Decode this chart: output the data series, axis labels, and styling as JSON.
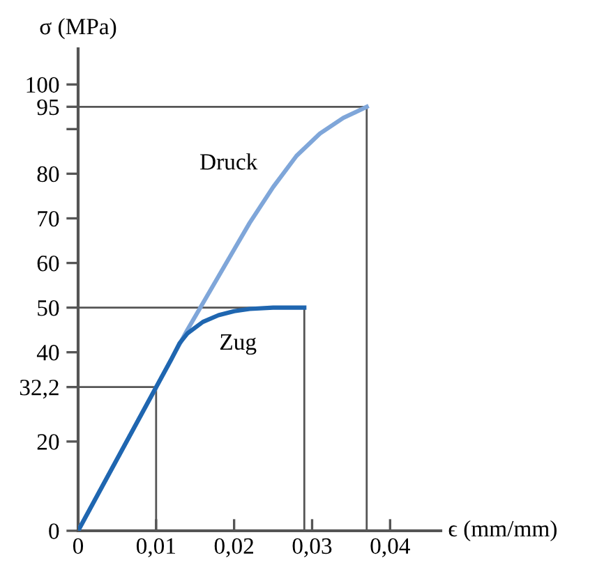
{
  "chart_data": {
    "type": "line",
    "xlabel": "ϵ (mm/mm)",
    "ylabel": "σ (MPa)",
    "xlim": [
      0,
      0.0465
    ],
    "ylim": [
      0,
      108
    ],
    "xticks": [
      0,
      {
        "value": 0.01,
        "label": "0,01"
      },
      {
        "value": 0.02,
        "label": "0,02"
      },
      {
        "value": 0.03,
        "label": "0,03"
      },
      {
        "value": 0.04,
        "label": "0,04"
      }
    ],
    "yticks": [
      0,
      20,
      {
        "value": 32.2,
        "label": "32,2"
      },
      40,
      50,
      60,
      70,
      80,
      {
        "value": 90,
        "label": null
      },
      95,
      100
    ],
    "grid": false,
    "legend": false,
    "marker": "none",
    "line_style": "solid",
    "series": [
      {
        "name": "Druck",
        "color": "#7fa6d9",
        "x": [
          0,
          0.012,
          0.014,
          0.016,
          0.018,
          0.02,
          0.022,
          0.025,
          0.028,
          0.031,
          0.034,
          0.037
        ],
        "values": [
          0,
          38.6,
          45,
          51,
          57,
          63,
          69,
          77,
          84,
          89,
          92.5,
          95
        ]
      },
      {
        "name": "Zug",
        "color": "#1f66b0",
        "x": [
          0,
          0.012,
          0.013,
          0.014,
          0.016,
          0.018,
          0.02,
          0.022,
          0.025,
          0.029
        ],
        "values": [
          0,
          38.6,
          42,
          44.2,
          46.8,
          48.3,
          49.2,
          49.7,
          50,
          50
        ]
      },
      {
        "color": "#555555",
        "x": [
          0,
          0.01,
          0.01
        ],
        "values": [
          32.2,
          32.2,
          0
        ]
      },
      {
        "color": "#555555",
        "x": [
          0,
          0.029,
          0.029
        ],
        "values": [
          50,
          50,
          0
        ]
      },
      {
        "color": "#555555",
        "x": [
          0,
          0.037,
          0.037
        ],
        "values": [
          95,
          95,
          0
        ]
      }
    ]
  }
}
